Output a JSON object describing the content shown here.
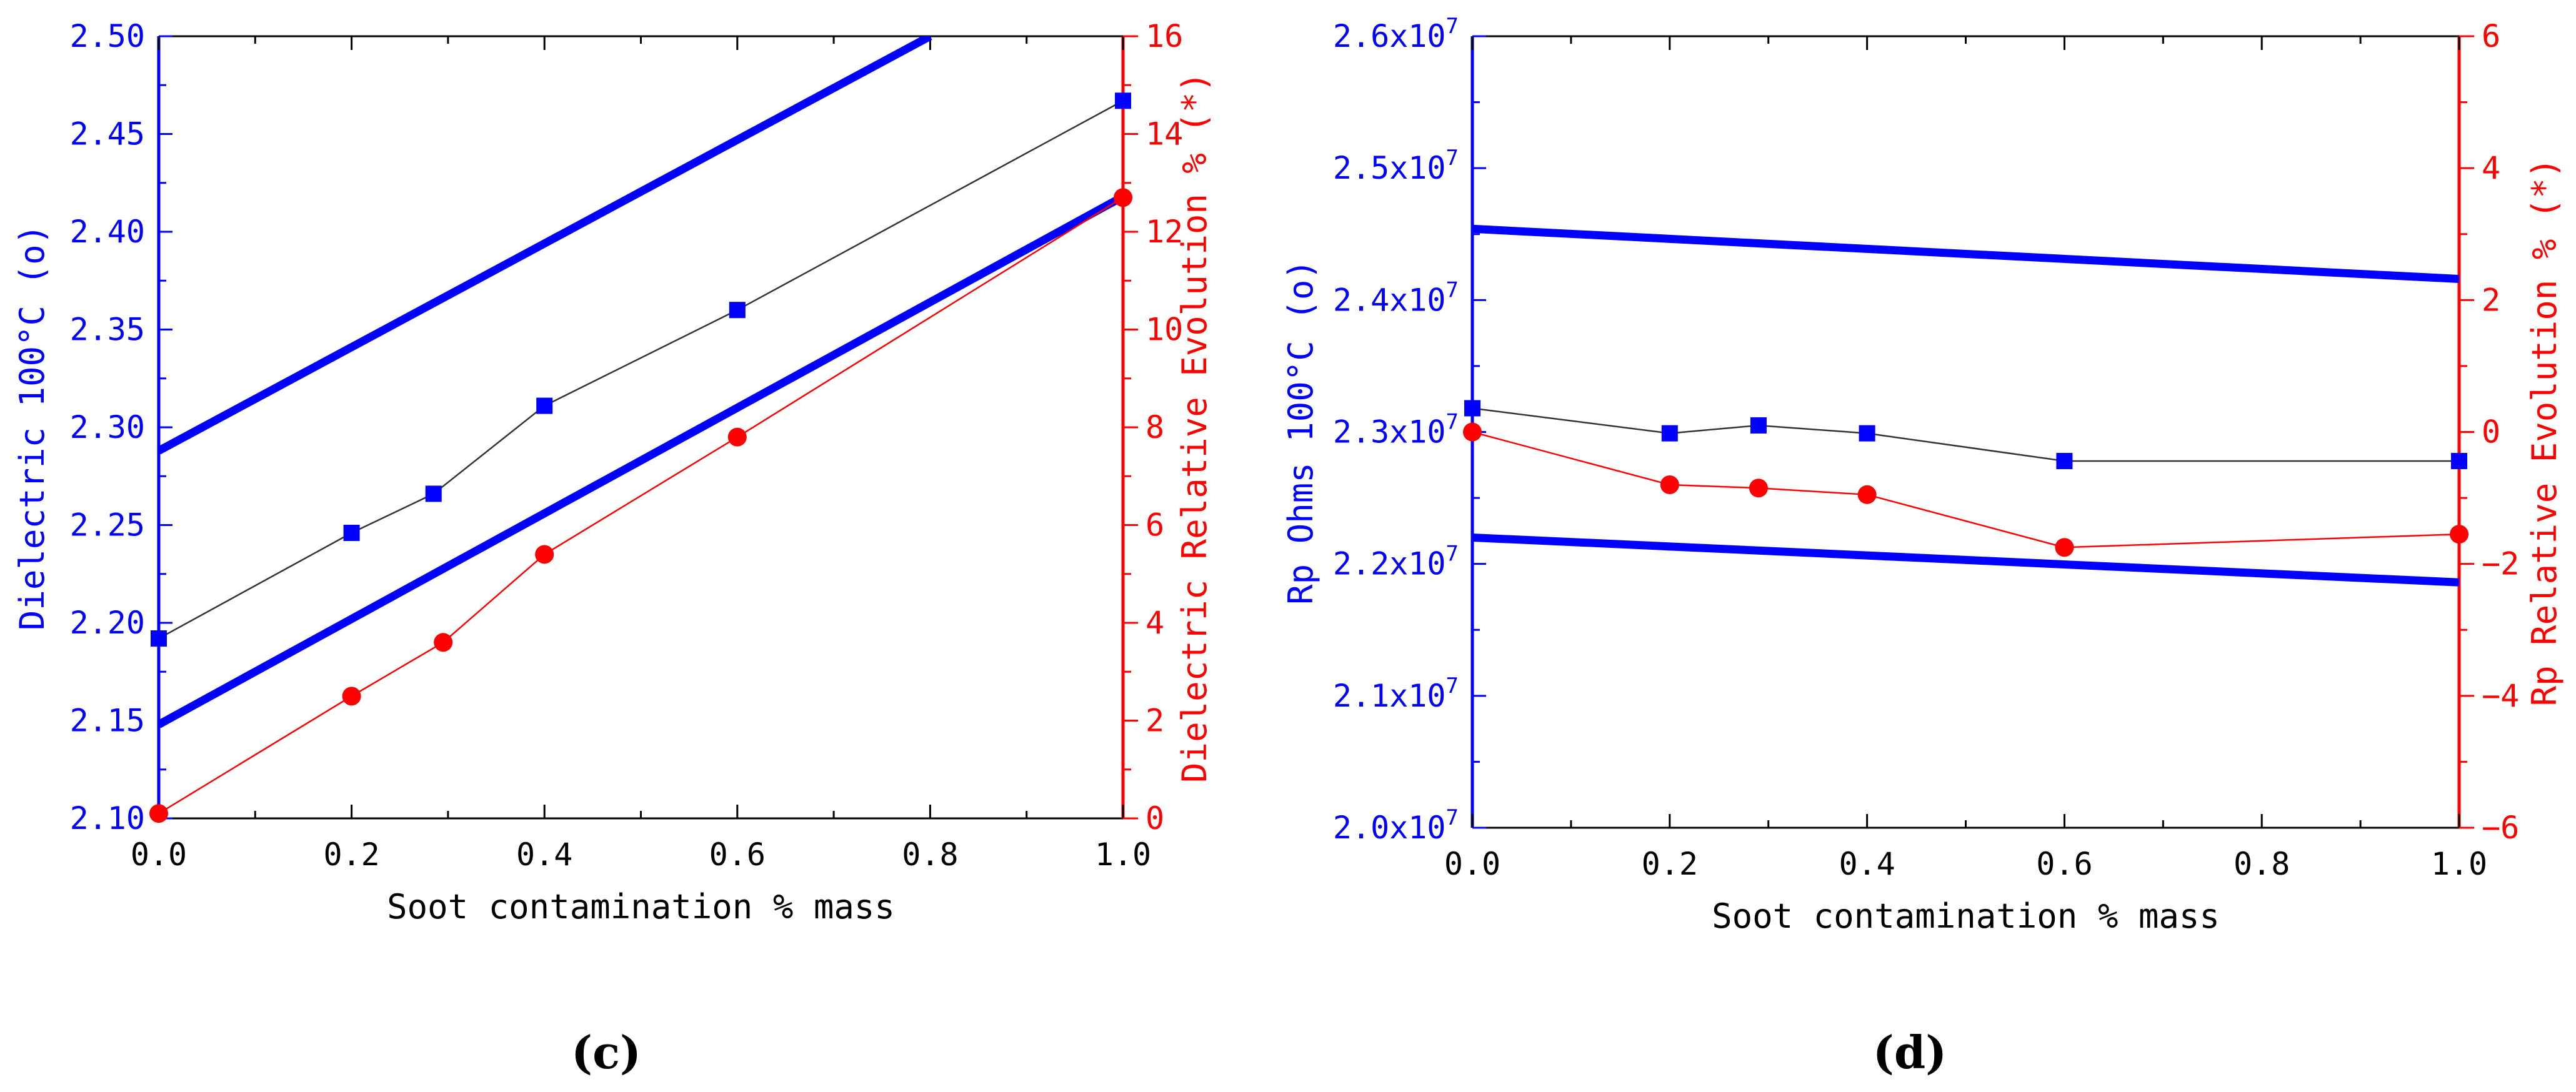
{
  "chart_data": [
    {
      "type": "line",
      "panel_label": "(c)",
      "xlabel": "Soot contamination % mass",
      "ylabel_left": "Dielectric 100°C (o)",
      "ylabel_right": "Dielectric Relative Evolution % (*)",
      "xlim": [
        0,
        1.0
      ],
      "ylim_left": [
        2.1,
        2.5
      ],
      "ylim_right": [
        0,
        16
      ],
      "x_ticks": [
        0.0,
        0.2,
        0.4,
        0.6,
        0.8,
        1.0
      ],
      "x_tick_labels": [
        "0.0",
        "0.2",
        "0.4",
        "0.6",
        "0.8",
        "1.0"
      ],
      "y_left_ticks": [
        2.1,
        2.15,
        2.2,
        2.25,
        2.3,
        2.35,
        2.4,
        2.45,
        2.5
      ],
      "y_left_tick_labels": [
        "2.10",
        "2.15",
        "2.20",
        "2.25",
        "2.30",
        "2.35",
        "2.40",
        "2.45",
        "2.50"
      ],
      "y_right_ticks": [
        0,
        2,
        4,
        6,
        8,
        10,
        12,
        14,
        16
      ],
      "y_right_tick_labels": [
        "0",
        "2",
        "4",
        "6",
        "8",
        "10",
        "12",
        "14",
        "16"
      ],
      "colors": {
        "left_axis": "#0000ff",
        "right_axis": "#ff0000",
        "series_line": "#333333",
        "band": "#0000ff"
      },
      "series": [
        {
          "name": "Dielectric 100°C (o)",
          "axis": "left",
          "marker": "square",
          "x": [
            0.0,
            0.2,
            0.285,
            0.4,
            0.6,
            1.0
          ],
          "y": [
            2.192,
            2.246,
            2.266,
            2.311,
            2.36,
            2.467
          ]
        },
        {
          "name": "Dielectric Relative Evolution % (*)",
          "axis": "right",
          "marker": "circle",
          "x": [
            0.0,
            0.2,
            0.295,
            0.4,
            0.6,
            1.0
          ],
          "y": [
            0.1,
            2.5,
            3.6,
            5.4,
            7.8,
            12.7
          ]
        }
      ],
      "band_lines": [
        {
          "name": "upper limit",
          "axis": "left",
          "x": [
            0.0,
            0.8
          ],
          "y": [
            2.288,
            2.5
          ]
        },
        {
          "name": "lower limit",
          "axis": "left",
          "x": [
            0.0,
            1.0
          ],
          "y": [
            2.148,
            2.418
          ]
        }
      ]
    },
    {
      "type": "line",
      "panel_label": "(d)",
      "xlabel": "Soot contamination % mass",
      "ylabel_left": "Rp Ohms 100°C (o)",
      "ylabel_right": "Rp Relative Evolution % (*)",
      "xlim": [
        0,
        1.0
      ],
      "ylim_left": [
        20000000,
        26000000
      ],
      "ylim_right": [
        -6,
        6
      ],
      "x_ticks": [
        0.0,
        0.2,
        0.4,
        0.6,
        0.8,
        1.0
      ],
      "x_tick_labels": [
        "0.0",
        "0.2",
        "0.4",
        "0.6",
        "0.8",
        "1.0"
      ],
      "y_left_ticks": [
        20000000,
        21000000,
        22000000,
        23000000,
        24000000,
        25000000,
        26000000
      ],
      "y_left_tick_labels": [
        {
          "base": "2.0x10",
          "exp": "7"
        },
        {
          "base": "2.1x10",
          "exp": "7"
        },
        {
          "base": "2.2x10",
          "exp": "7"
        },
        {
          "base": "2.3x10",
          "exp": "7"
        },
        {
          "base": "2.4x10",
          "exp": "7"
        },
        {
          "base": "2.5x10",
          "exp": "7"
        },
        {
          "base": "2.6x10",
          "exp": "7"
        }
      ],
      "y_right_ticks": [
        -6,
        -4,
        -2,
        0,
        2,
        4,
        6
      ],
      "y_right_tick_labels": [
        "−6",
        "−4",
        "−2",
        "0",
        "2",
        "4",
        "6"
      ],
      "colors": {
        "left_axis": "#0000ff",
        "right_axis": "#ff0000",
        "series_line": "#333333",
        "band": "#0000ff"
      },
      "series": [
        {
          "name": "Rp Ohms 100°C (o)",
          "axis": "left",
          "marker": "square",
          "x": [
            0.0,
            0.2,
            0.29,
            0.4,
            0.6,
            1.0
          ],
          "y": [
            23180000,
            22990000,
            23050000,
            22990000,
            22780000,
            22780000
          ]
        },
        {
          "name": "Rp Relative Evolution % (*)",
          "axis": "right",
          "marker": "circle",
          "x": [
            0.0,
            0.2,
            0.29,
            0.4,
            0.6,
            1.0
          ],
          "y": [
            0.0,
            -0.8,
            -0.85,
            -0.95,
            -1.75,
            -1.55
          ]
        }
      ],
      "band_lines": [
        {
          "name": "upper limit",
          "axis": "left",
          "x": [
            0.0,
            1.0
          ],
          "y": [
            24540000,
            24160000
          ]
        },
        {
          "name": "lower limit",
          "axis": "left",
          "x": [
            0.0,
            1.0
          ],
          "y": [
            22200000,
            21860000
          ]
        }
      ]
    }
  ]
}
